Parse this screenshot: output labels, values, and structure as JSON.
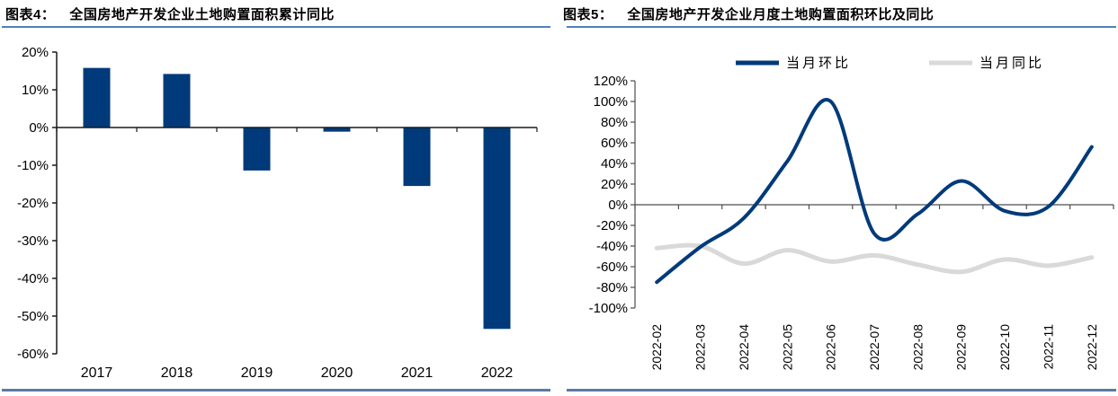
{
  "page": {
    "background": "#ffffff",
    "colors": {
      "navy": "#003a7a",
      "light_gray": "#d9d9d9",
      "title_rule": "#4f81bd",
      "footer_rule": "#5c7ba4",
      "axis_dark": "#1a1a1a",
      "axis_gray": "#4d4d4d"
    }
  },
  "panels": [
    {
      "tag": "图表4：",
      "title": "全国房地产开发企业土地购置面积累计同比"
    },
    {
      "tag": "图表5：",
      "title": "全国房地产开发企业月度土地购置面积环比及同比"
    }
  ],
  "chart_data": [
    {
      "type": "bar",
      "title": "全国房地产开发企业土地购置面积累计同比",
      "categories": [
        "2017",
        "2018",
        "2019",
        "2020",
        "2021",
        "2022"
      ],
      "values": [
        15.8,
        14.2,
        -11.4,
        -1.1,
        -15.5,
        -53.4
      ],
      "unit": "%",
      "ylim": [
        -60,
        20
      ],
      "yticks": [
        "20%",
        "10%",
        "0%",
        "-10%",
        "-20%",
        "-30%",
        "-40%",
        "-50%",
        "-60%"
      ],
      "bar_color": "#003a7a",
      "grid": false,
      "legend": null
    },
    {
      "type": "line",
      "title": "全国房地产开发企业月度土地购置面积环比及同比",
      "categories": [
        "2022-02",
        "2022-03",
        "2022-04",
        "2022-05",
        "2022-06",
        "2022-07",
        "2022-08",
        "2022-09",
        "2022-10",
        "2022-11",
        "2022-12"
      ],
      "series": [
        {
          "name": "当月环比",
          "color": "#003a7a",
          "stroke_width": 4,
          "values": [
            -75,
            -41,
            -13,
            42,
            100,
            -28,
            -9,
            23,
            -6,
            -2,
            56
          ]
        },
        {
          "name": "当月同比",
          "color": "#d9d9d9",
          "stroke_width": 5,
          "values": [
            -42,
            -40,
            -57,
            -44,
            -55,
            -49,
            -58,
            -65,
            -53,
            -59,
            -51
          ]
        }
      ],
      "unit": "%",
      "ylim": [
        -100,
        120
      ],
      "yticks": [
        "120%",
        "100%",
        "80%",
        "60%",
        "40%",
        "20%",
        "0%",
        "-20%",
        "-40%",
        "-60%",
        "-80%",
        "-100%"
      ],
      "legend_position": "top",
      "smooth": true,
      "grid": false
    }
  ]
}
